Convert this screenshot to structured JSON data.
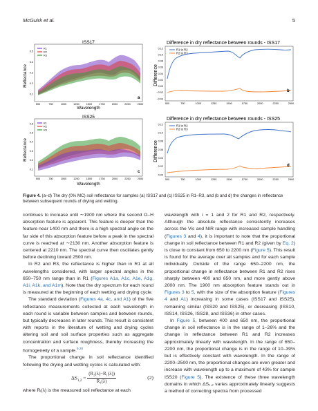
{
  "header": {
    "authors": "McGuirk et al.",
    "page_number": "5"
  },
  "figure": {
    "panels": [
      {
        "id": "a",
        "title": "ISS17",
        "ylabel": "Reflectance",
        "xlabel": "Wavelength",
        "legend": [
          "R1",
          "R2",
          "R3"
        ]
      },
      {
        "id": "b",
        "title": "Difference in dry reflectance between rounds - ISS17",
        "ylabel": "Difference",
        "legend": [
          "R1 to R2",
          "R2 to R3"
        ]
      },
      {
        "id": "c",
        "title": "ISS25",
        "ylabel": "Reflectance",
        "xlabel": "Wavelength",
        "legend": [
          "R1",
          "R2",
          "R3"
        ]
      },
      {
        "id": "d",
        "title": "Difference in dry reflectance between rounds - ISS25",
        "ylabel": "Difference",
        "legend": [
          "R1 to R2",
          "R2 to R3"
        ]
      }
    ],
    "x_ticks": [
      "500",
      "750",
      "1000",
      "1250",
      "1500",
      "1750",
      "2000",
      "2250",
      "2500"
    ],
    "a_yticks": [
      "0.1",
      "0.2",
      "0.3",
      "0.4",
      "0.5"
    ],
    "b_yticks": [
      "0.12",
      "0.10",
      "0.08",
      "0.06",
      "0.04",
      "0.02",
      "0.00",
      "−0.02",
      "−0.04"
    ],
    "c_yticks": [
      "0.1",
      "0.2",
      "0.3",
      "0.4",
      "0.5",
      "0.6"
    ],
    "d_yticks": [
      "0.12",
      "0.10",
      "0.08",
      "0.06",
      "0.04",
      "0.02",
      "0.00"
    ],
    "colors": {
      "R1": "#7a3fc4",
      "R2": "#d93a3a",
      "R3": "#3a9a3a",
      "R1_to_R2": "#3a6fc4",
      "R2_to_R3": "#f08a3c"
    }
  },
  "caption": {
    "label": "Figure 4.",
    "text": " (a–d) The dry (0% MC) soil reflectance for samples (a) ISS17 and (c) ISS25 in R1–R3, and (b and d) the changes in reflectance between subsequent rounds of drying and wetting."
  },
  "left_column": {
    "p1": "continues to increase until ∼1900 nm where the second O–H absorption feature is apparent. This feature is deeper than the feature near 1400 nm and there is a high spectral angle on the far side of this absorption feature before a peak in the spectral curve is reached at ∼2130 nm. Another absorption feature is centered at 2210 nm. The spectral curve then oscillates gently before declining toward 2500 nm.",
    "p2_a": "In R2 and R3, the reflectance is higher than in R1 at all wavelengths considered, with larger spectral angles in the 650–750 nm range than in R1 (",
    "p2_link": "Figures A1a, A1c, A1e, A1g, A1i, A1k, and A1m",
    "p2_b": "). Note that the dry spectrum for each round is measured at the beginning of each wetting and drying cycle.",
    "p3_a": "The standard deviation (",
    "p3_link": "Figures 4a, 4c, and A1",
    "p3_b": ") of the five reflectance measurements collected at each wavelength in each round is variable between samples and between rounds, but typically decreases in later rounds. This result is consistent with reports in the literature of wetting and drying cycles altering soil and soil surface properties such as aggregate concentration and surface roughness, thereby increasing the homogeneity of a sample.",
    "p3_ref": "5,20",
    "p4": "The proportional change in soil reflectance identified following the drying and wetting cycles is calculated with:",
    "eq_lhs": "ΔS",
    "eq_sub": "1,2",
    "eq_num": "(R₂(λ)−R₁(λ))",
    "eq_den": "R₁(λ)",
    "eq_no": "(2)",
    "p5": "where Rᵢ(λ) is the measured soil reflectance at each"
  },
  "right_column": {
    "p1_a": "wavelength with i = 1 and 2 for R1 and R2, respectively. Although the absolute reflectance consistently increases across the Vis and NIR range with increased sample handling (",
    "p1_link1": "Figures 3",
    "p1_mid1": " and ",
    "p1_link2": "4",
    "p1_b": "), it is important to note that the proportional change in soil reflectance between R1 and R2 (given by ",
    "p1_link3": "Eq. 2",
    "p1_c": ") is close to constant from 650 to 2200 nm (",
    "p1_link4": "Figure 5",
    "p1_d": "). This result is found for the average over all samples and for each sample individually. Outside of the range 650–2200 nm, the proportional change in reflectance between R1 and R2 rises sharply between 400 and 650 nm, and more gently above 2000 nm. The 1900 nm absorption feature stands out in ",
    "p1_link5": "Figures 3",
    "p1_e": " to ",
    "p1_link6": "5",
    "p1_f": ", with the size of the absorption feature (",
    "p1_link7": "Figures 4",
    "p1_g": " and ",
    "p1_link8": "A1",
    "p1_h": ") increasing in some cases (ISS17 and ISS25), remaining similar (ISS20 and ISS25), or decreasing (ISS10, ISS14, ISS26, ISS28, and ISS36) in other cases.",
    "p2_a": "In ",
    "p2_link": "Figure 5",
    "p2_b": ", between 400 and 650 nm, the proportional change in soil reflectance is in the range of 1–26% and the change in reflectance between R1 and R2 increases approximately linearly with wavelength. In the range of 650–2200 nm, the proportional change is in the range of 10–39% but is effectively constant with wavelength. In the range of 2200–2500 nm, the proportional changes are even greater and increase with wavelength up to a maximum of 43% for sample ISS20 (",
    "p2_link2": "Figure 5",
    "p2_c": "). The existence of these three wavelength domains in which ΔS₁,₂ varies approximately linearly suggests a method of correcting spectra from processed"
  }
}
